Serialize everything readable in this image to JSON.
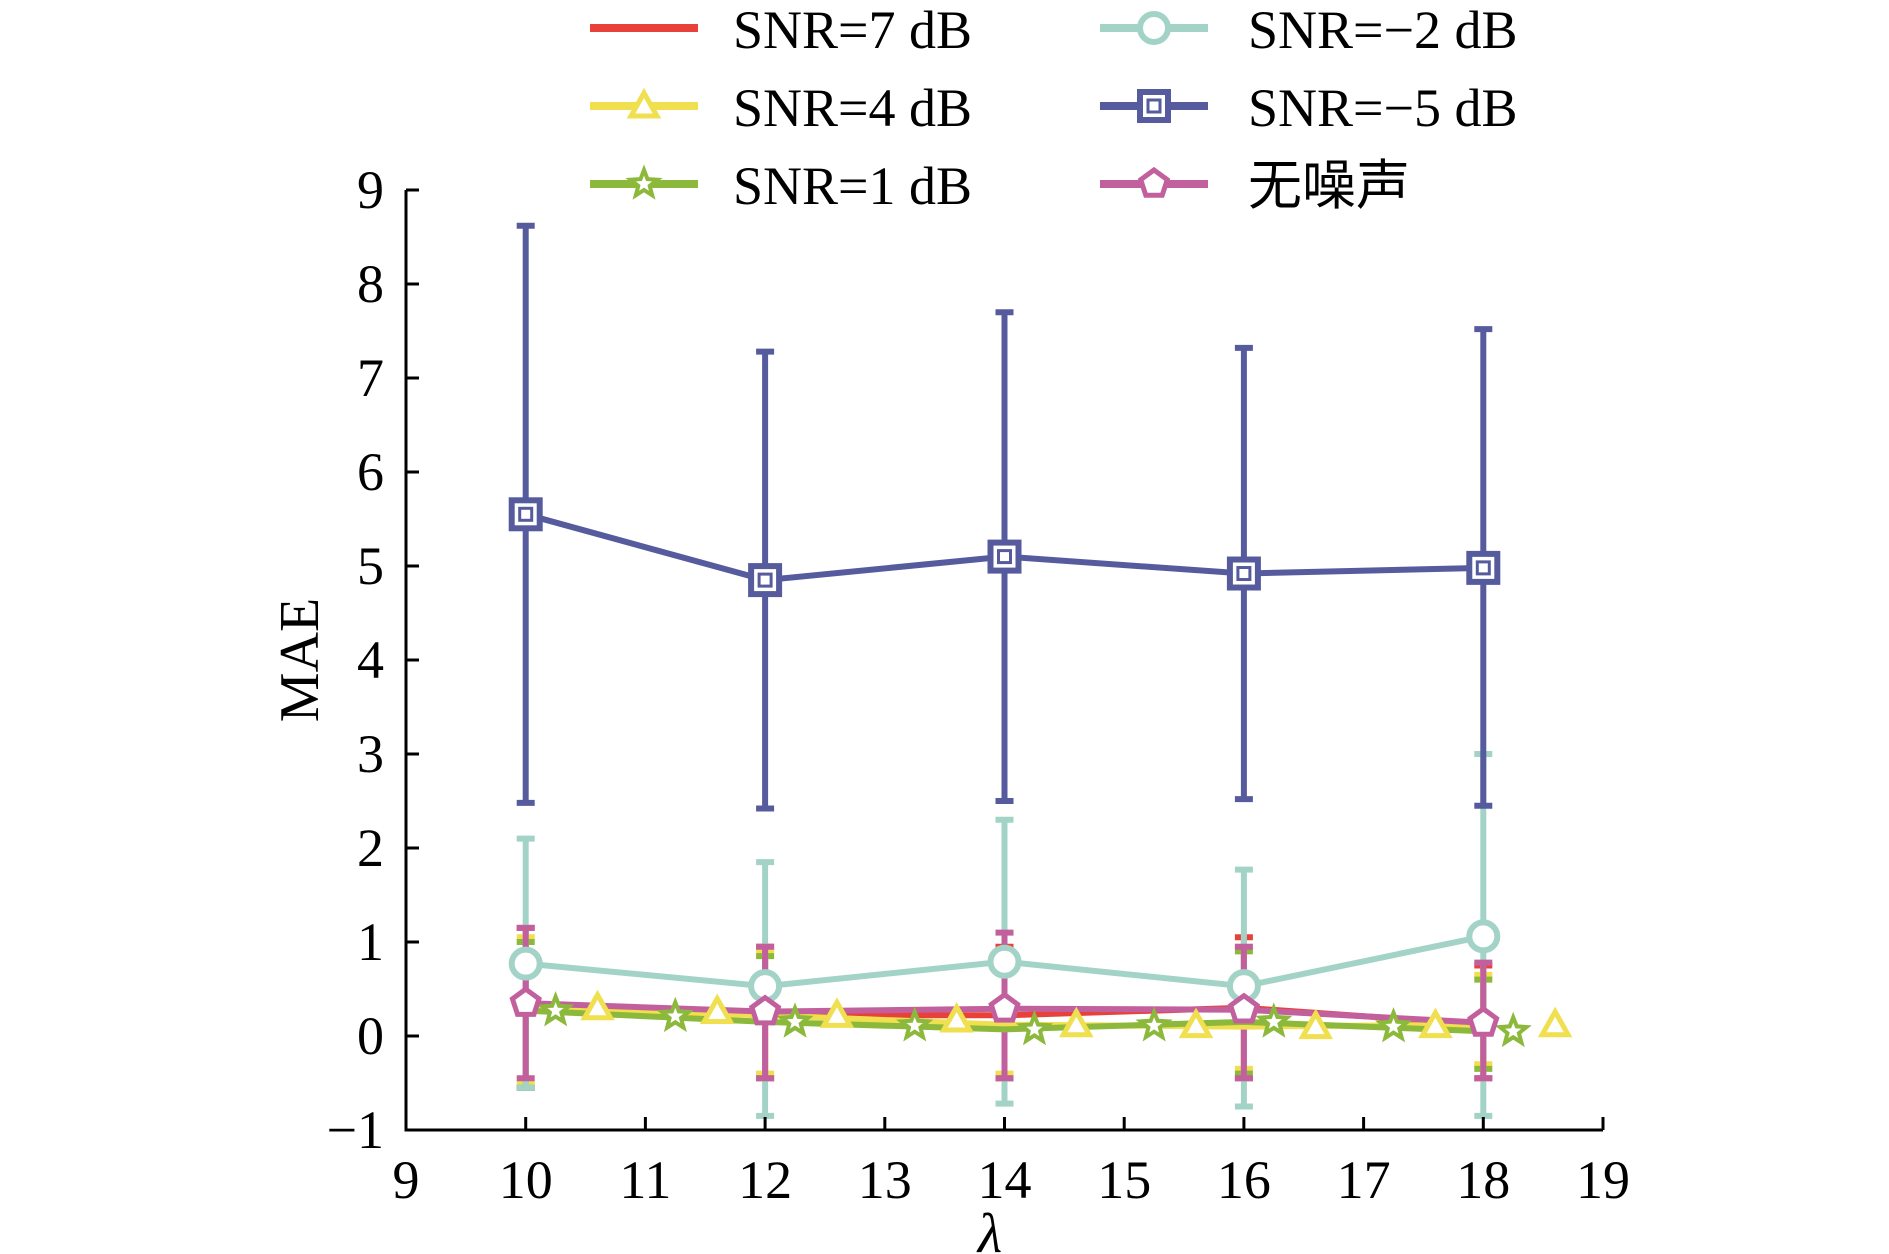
{
  "chart_data": {
    "type": "line",
    "title": "",
    "xlabel": "λ",
    "ylabel": "MAE",
    "xlim": [
      9,
      19
    ],
    "ylim": [
      -1,
      9
    ],
    "xticks": [
      "9",
      "10",
      "11",
      "12",
      "13",
      "14",
      "15",
      "16",
      "17",
      "18",
      "19"
    ],
    "yticks": [
      "−1",
      "0",
      "1",
      "2",
      "3",
      "4",
      "5",
      "6",
      "7",
      "8",
      "9"
    ],
    "x": [
      10,
      12,
      14,
      16,
      18
    ],
    "legend_position": "top",
    "series": [
      {
        "name": "SNR=7 dB",
        "color": "#e8413a",
        "marker": "none",
        "values": [
          0.33,
          0.22,
          0.22,
          0.3,
          0.12
        ],
        "err_low": [
          -0.55,
          -0.45,
          -0.45,
          -0.45,
          -0.45
        ],
        "err_high": [
          1.15,
          0.95,
          0.95,
          1.05,
          0.75
        ]
      },
      {
        "name": "SNR=4 dB",
        "color": "#f0df4e",
        "marker": "triangle",
        "values": [
          0.3,
          0.22,
          0.12,
          0.1,
          0.12
        ],
        "err_low": [
          -0.5,
          -0.4,
          -0.4,
          -0.35,
          -0.3
        ],
        "err_high": [
          1.05,
          0.9,
          0.9,
          0.95,
          0.65
        ]
      },
      {
        "name": "SNR=1 dB",
        "color": "#8cb83b",
        "marker": "star",
        "values": [
          0.27,
          0.15,
          0.07,
          0.15,
          0.05
        ],
        "err_low": [
          -0.55,
          -0.45,
          -0.45,
          -0.4,
          -0.35
        ],
        "err_high": [
          1.0,
          0.85,
          0.85,
          0.9,
          0.6
        ]
      },
      {
        "name": "SNR=−2 dB",
        "color": "#a3d3c7",
        "marker": "circle",
        "values": [
          0.77,
          0.53,
          0.79,
          0.53,
          1.06
        ],
        "err_low": [
          -0.55,
          -0.85,
          -0.72,
          -0.75,
          -0.85
        ],
        "err_high": [
          2.1,
          1.85,
          2.3,
          1.77,
          3.0
        ]
      },
      {
        "name": "SNR=−5 dB",
        "color": "#565b9e",
        "marker": "square",
        "values": [
          5.55,
          4.85,
          5.1,
          4.92,
          4.98
        ],
        "err_low": [
          2.48,
          2.42,
          2.5,
          2.52,
          2.45
        ],
        "err_high": [
          8.62,
          7.28,
          7.7,
          7.32,
          7.52
        ]
      },
      {
        "name": "无噪声",
        "color": "#c2609e",
        "marker": "pentagon",
        "values": [
          0.35,
          0.26,
          0.29,
          0.28,
          0.14
        ],
        "err_low": [
          -0.45,
          -0.45,
          -0.45,
          -0.45,
          -0.45
        ],
        "err_high": [
          1.15,
          0.95,
          1.1,
          0.95,
          0.78
        ]
      }
    ]
  }
}
